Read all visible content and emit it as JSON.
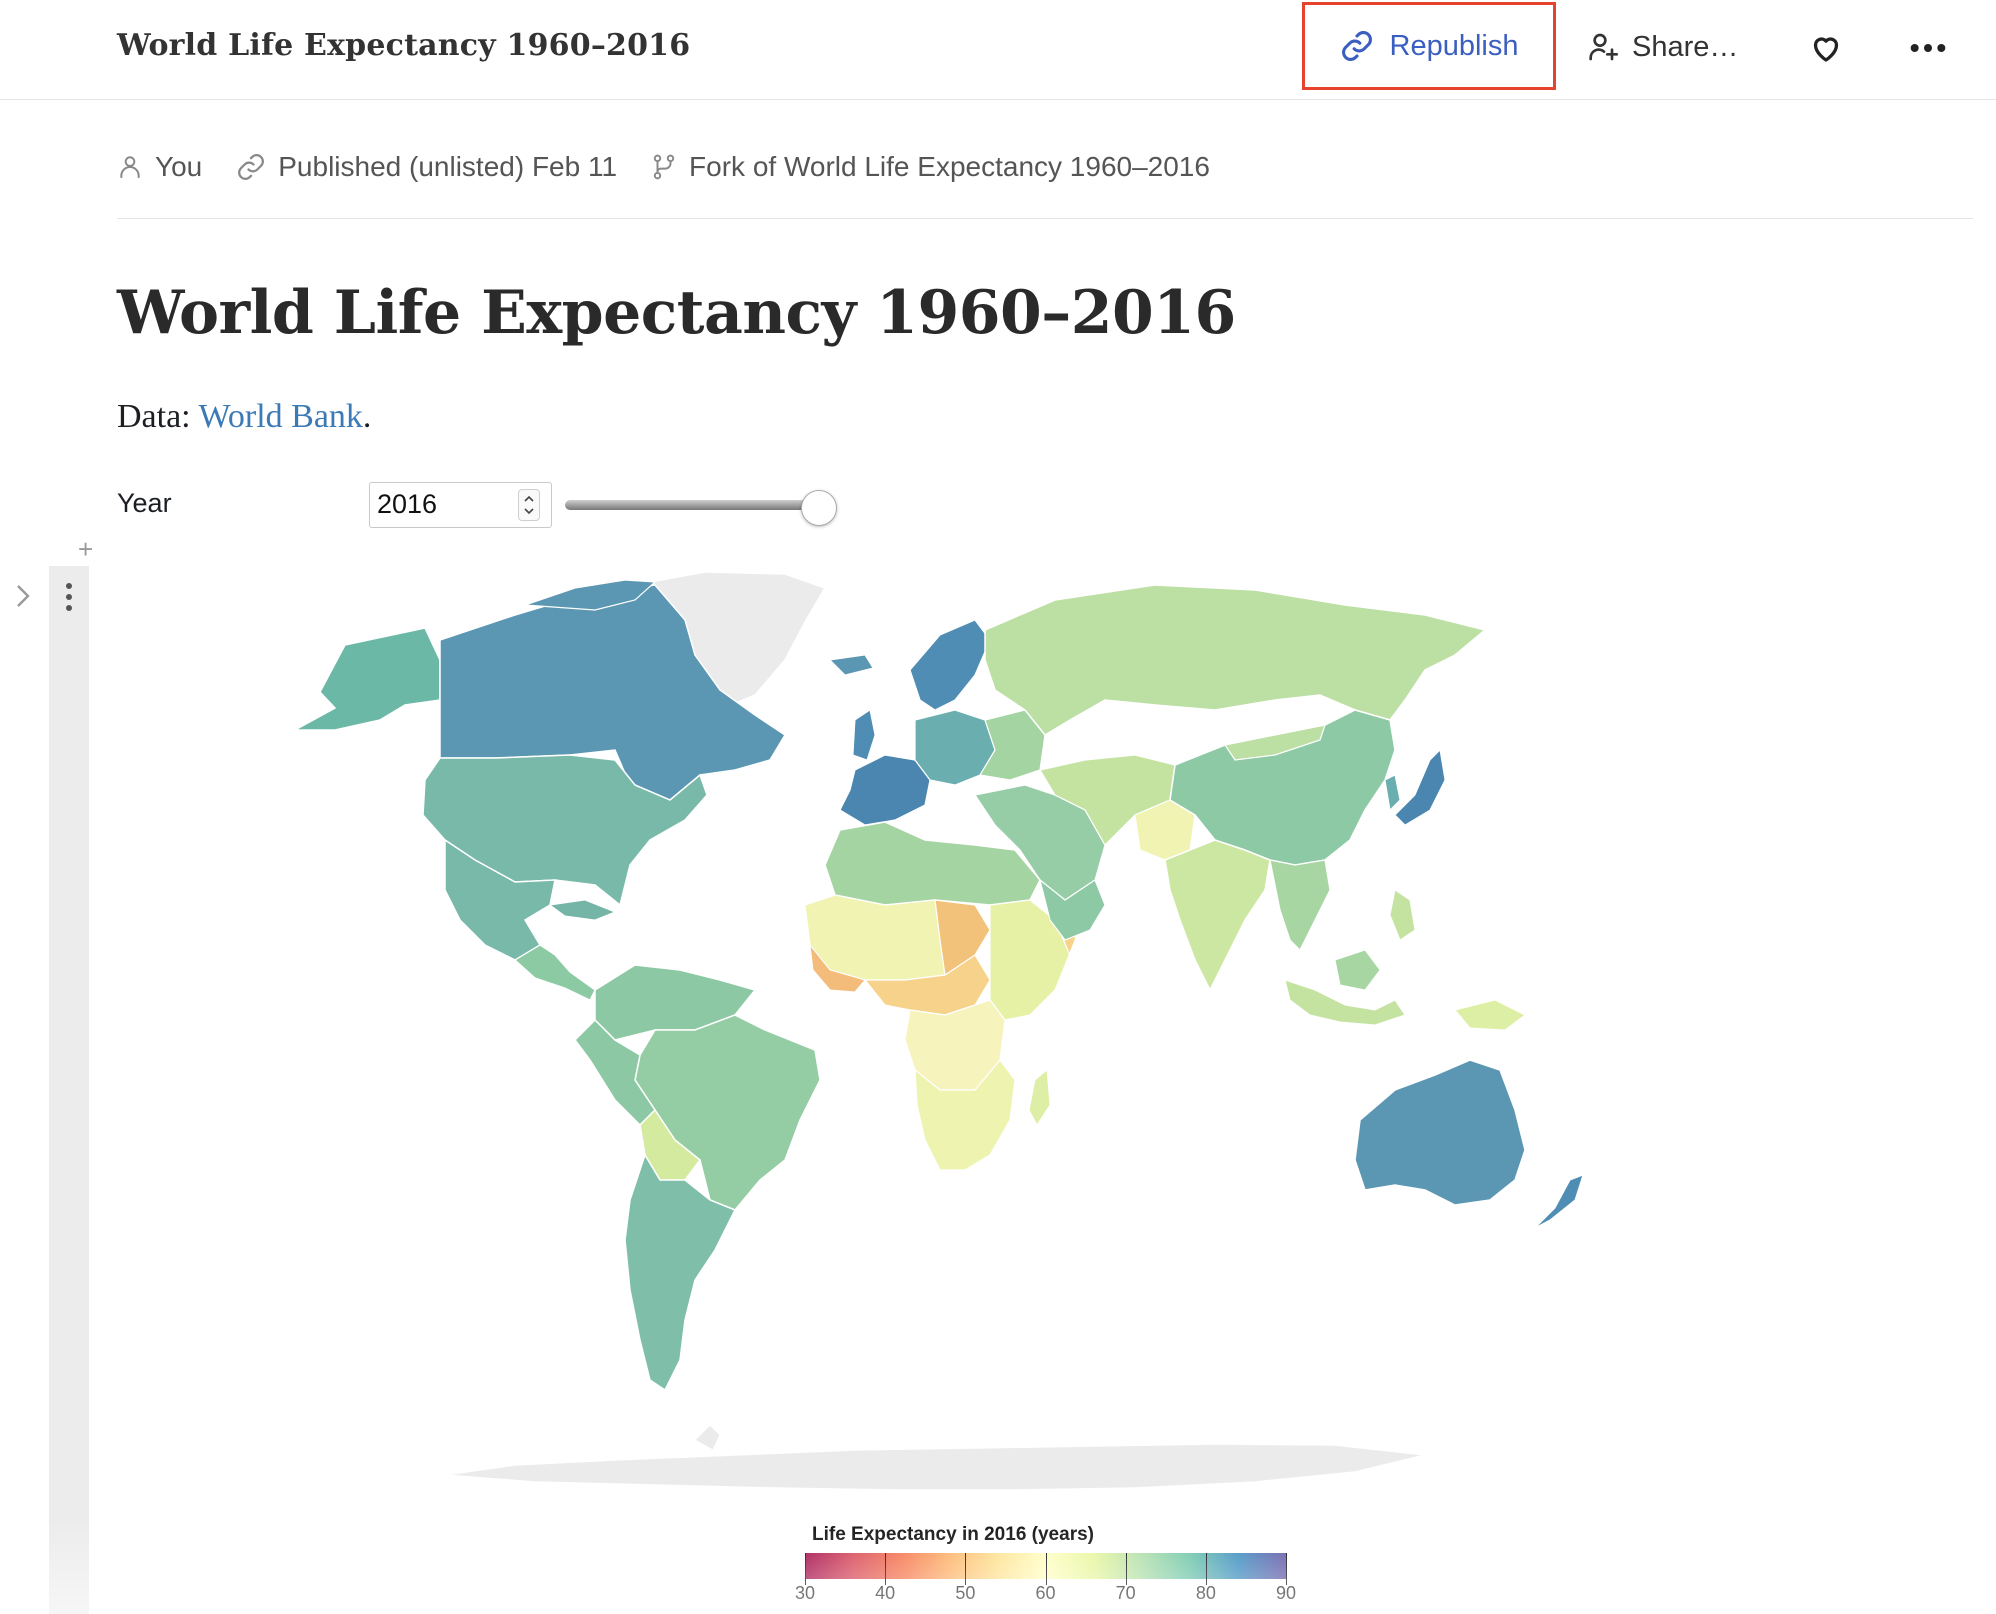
{
  "header": {
    "doc_title": "World Life Expectancy 1960–2016",
    "republish_label": "Republish",
    "share_label": "Share…"
  },
  "meta": {
    "author": "You",
    "published": "Published (unlisted) Feb 11",
    "fork": "Fork of World Life Expectancy 1960–2016"
  },
  "content": {
    "title": "World Life Expectancy 1960–2016",
    "data_prefix": "Data: ",
    "data_link": "World Bank",
    "data_suffix": ".",
    "year_label": "Year",
    "year_value": "2016",
    "slider_value_fraction": 1.0
  },
  "legend": {
    "title": "Life Expectancy in 2016 (years)",
    "ticks": [
      "30",
      "40",
      "50",
      "60",
      "70",
      "80",
      "90"
    ],
    "colors": [
      "#9e0142",
      "#d53e4f",
      "#f46d43",
      "#fdae61",
      "#fee08b",
      "#ffffbf",
      "#e6f598",
      "#abdda4",
      "#66c2a5",
      "#3288bd",
      "#5e4fa2"
    ]
  },
  "colors": {
    "accent": "#3b5fc0",
    "highlight_box": "#e5432d",
    "link": "#3b7ab6",
    "no_data": "#ebebeb"
  },
  "icons": {
    "republish": "link-icon",
    "share": "person-add-icon",
    "favorite": "heart-icon",
    "more": "ellipsis-icon",
    "author": "person-icon",
    "published": "link-icon",
    "fork": "fork-icon"
  }
}
